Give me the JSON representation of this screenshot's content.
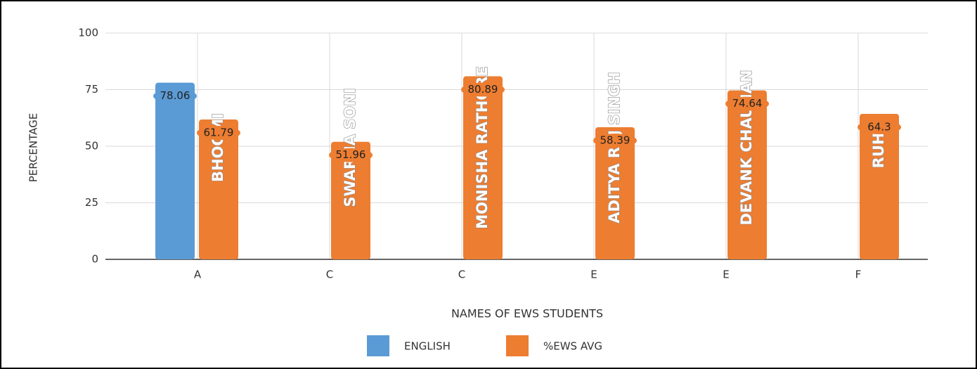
{
  "chart_data": {
    "type": "bar",
    "x_label": "NAMES OF EWS STUDENTS",
    "y_label": "PERCENTAGE",
    "categories": [
      "A",
      "C",
      "C",
      "E",
      "E",
      "F"
    ],
    "series": [
      {
        "name": "ENGLISH",
        "color": "#5b9bd5",
        "values": [
          78.06,
          null,
          null,
          null,
          null,
          null
        ]
      },
      {
        "name": "%EWS AVG",
        "color": "#ed7d31",
        "values": [
          61.79,
          51.96,
          80.89,
          58.39,
          74.64,
          64.3
        ],
        "bar_labels": [
          "BHOOMI",
          "SWARNA SONI",
          "MONISHA RATHORE",
          "ADITYA RAJ SINGH",
          "DEVANK CHAUHAN",
          "RUHI"
        ]
      }
    ],
    "ylim": [
      0,
      100
    ],
    "yticks": [
      0,
      25,
      50,
      75,
      100
    ],
    "grid": true,
    "legend": "bottom"
  }
}
